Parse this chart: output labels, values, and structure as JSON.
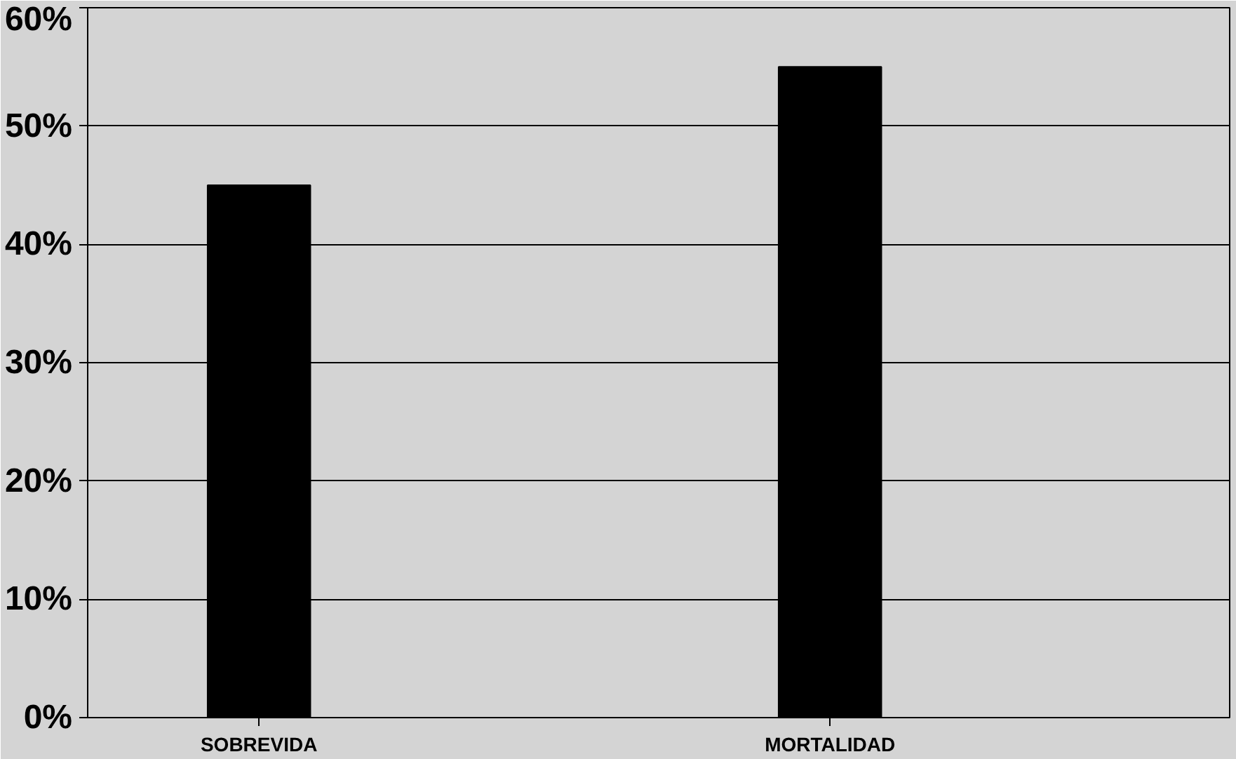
{
  "chart_data": {
    "type": "bar",
    "categories": [
      "SOBREVIDA",
      "MORTALIDAD"
    ],
    "values": [
      45,
      55
    ],
    "color": "#000000",
    "ylim": [
      0,
      60
    ],
    "yticks": [
      {
        "value": 0,
        "label": "0%"
      },
      {
        "value": 10,
        "label": "10%"
      },
      {
        "value": 20,
        "label": "20%"
      },
      {
        "value": 30,
        "label": "30%"
      },
      {
        "value": 40,
        "label": "40%"
      },
      {
        "value": 50,
        "label": "50%"
      },
      {
        "value": 60,
        "label": "60%"
      }
    ],
    "grid": "y"
  }
}
